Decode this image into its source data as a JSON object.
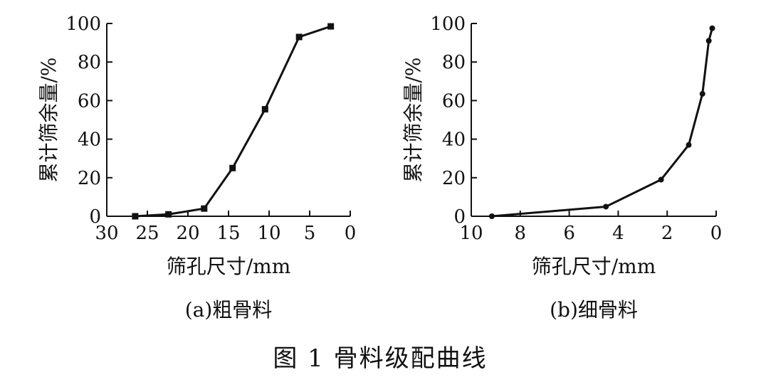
{
  "figure": {
    "caption": "图 1   骨料级配曲线"
  },
  "chart_data": [
    {
      "type": "line",
      "subcaption": "(a)粗骨料",
      "xlabel": "筛孔尺寸/mm",
      "ylabel": "累计筛余量/%",
      "xlim": [
        30,
        0
      ],
      "ylim": [
        0,
        100
      ],
      "x_reversed": true,
      "xticks": [
        30,
        25,
        20,
        15,
        10,
        5,
        0
      ],
      "yticks": [
        0,
        20,
        40,
        60,
        80,
        100
      ],
      "marker": "square",
      "series": [
        {
          "x": [
            26.5,
            22.4,
            18.0,
            14.5,
            10.5,
            6.3,
            2.4
          ],
          "y": [
            0,
            1,
            4,
            25,
            55.5,
            93,
            98.5
          ]
        }
      ]
    },
    {
      "type": "line",
      "subcaption": "(b)细骨料",
      "xlabel": "筛孔尺寸/mm",
      "ylabel": "累计筛余量/%",
      "xlim": [
        10,
        0
      ],
      "ylim": [
        0,
        100
      ],
      "x_reversed": true,
      "xticks": [
        10,
        8,
        6,
        4,
        2,
        0
      ],
      "yticks": [
        0,
        20,
        40,
        60,
        80,
        100
      ],
      "marker": "circle",
      "series": [
        {
          "x": [
            9.16,
            4.5,
            2.25,
            1.12,
            0.56,
            0.3,
            0.16
          ],
          "y": [
            0,
            5,
            19,
            37,
            63.5,
            91,
            97.5
          ]
        }
      ]
    }
  ]
}
